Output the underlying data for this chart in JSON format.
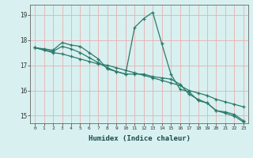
{
  "xlabel": "Humidex (Indice chaleur)",
  "background_color": "#d8f0f0",
  "grid_color": "#e8b0b0",
  "line_color": "#2a7a6a",
  "xlim": [
    -0.5,
    23.5
  ],
  "ylim": [
    14.7,
    19.4
  ],
  "xticks": [
    0,
    1,
    2,
    3,
    4,
    5,
    6,
    7,
    8,
    9,
    10,
    11,
    12,
    13,
    14,
    15,
    16,
    17,
    18,
    19,
    20,
    21,
    22,
    23
  ],
  "yticks": [
    15,
    16,
    17,
    18,
    19
  ],
  "line1_x": [
    0,
    1,
    2,
    3,
    4,
    5,
    6,
    7,
    8,
    9,
    10,
    11,
    12,
    13,
    14,
    15,
    16,
    17,
    18,
    19,
    20,
    21,
    22,
    23
  ],
  "line1_y": [
    17.7,
    17.65,
    17.6,
    17.9,
    17.8,
    17.75,
    17.5,
    17.25,
    16.85,
    16.75,
    16.65,
    18.5,
    18.85,
    19.1,
    17.85,
    16.65,
    16.05,
    15.95,
    15.6,
    15.5,
    15.2,
    15.15,
    15.05,
    14.8
  ],
  "line2_x": [
    0,
    1,
    2,
    3,
    4,
    5,
    6,
    7,
    8,
    9,
    10,
    11,
    12,
    13,
    14,
    15,
    16,
    17,
    18,
    19,
    20,
    21,
    22,
    23
  ],
  "line2_y": [
    17.7,
    17.6,
    17.55,
    17.75,
    17.65,
    17.5,
    17.3,
    17.1,
    16.9,
    16.75,
    16.65,
    16.65,
    16.65,
    16.55,
    16.5,
    16.45,
    16.25,
    15.85,
    15.65,
    15.5,
    15.2,
    15.1,
    14.98,
    14.75
  ],
  "line3_x": [
    0,
    1,
    2,
    3,
    4,
    5,
    6,
    7,
    8,
    9,
    10,
    11,
    12,
    13,
    14,
    15,
    16,
    17,
    18,
    19,
    20,
    21,
    22,
    23
  ],
  "line3_y": [
    17.7,
    17.6,
    17.5,
    17.45,
    17.35,
    17.25,
    17.15,
    17.05,
    17.0,
    16.9,
    16.8,
    16.7,
    16.6,
    16.5,
    16.4,
    16.3,
    16.2,
    16.0,
    15.9,
    15.8,
    15.65,
    15.55,
    15.45,
    15.35
  ]
}
